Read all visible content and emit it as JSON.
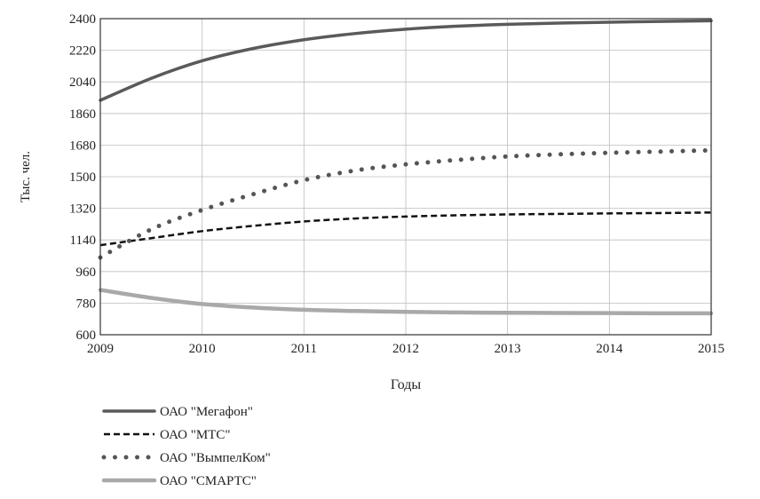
{
  "chart_data": {
    "type": "line",
    "xlabel": "Годы",
    "ylabel": "Тыс. чел.",
    "xlim": [
      2009,
      2015
    ],
    "ylim": [
      600,
      2400
    ],
    "x_ticks": [
      "2009",
      "2010",
      "2011",
      "2012",
      "2013",
      "2014",
      "2015"
    ],
    "y_ticks": [
      "600",
      "780",
      "960",
      "1140",
      "1320",
      "1500",
      "1680",
      "1860",
      "2040",
      "2220",
      "2400"
    ],
    "grid": true,
    "legend_position": "bottom-left",
    "x": [
      2009,
      2009.5,
      2010,
      2010.5,
      2011,
      2011.5,
      2012,
      2012.5,
      2013,
      2013.5,
      2014,
      2014.5,
      2015
    ],
    "series": [
      {
        "name": "ОАО \"Мегафон\"",
        "style": "solid",
        "color": "#5a5a5a",
        "values": [
          1935,
          2060,
          2160,
          2230,
          2280,
          2315,
          2340,
          2357,
          2368,
          2375,
          2380,
          2384,
          2388
        ]
      },
      {
        "name": "ОАО \"МТС\"",
        "style": "dashed",
        "color": "#111111",
        "values": [
          1110,
          1150,
          1190,
          1220,
          1245,
          1262,
          1273,
          1280,
          1285,
          1288,
          1291,
          1293,
          1296
        ]
      },
      {
        "name": "ОАО \"ВымпелКом\"",
        "style": "dotted",
        "color": "#555555",
        "values": [
          1040,
          1200,
          1310,
          1400,
          1480,
          1535,
          1570,
          1595,
          1615,
          1627,
          1636,
          1643,
          1650
        ]
      },
      {
        "name": "ОАО \"СМАРТС\"",
        "style": "solid-light",
        "color": "#a9a9a9",
        "values": [
          855,
          810,
          775,
          755,
          742,
          735,
          730,
          727,
          725,
          724,
          723,
          722,
          722
        ]
      }
    ]
  }
}
